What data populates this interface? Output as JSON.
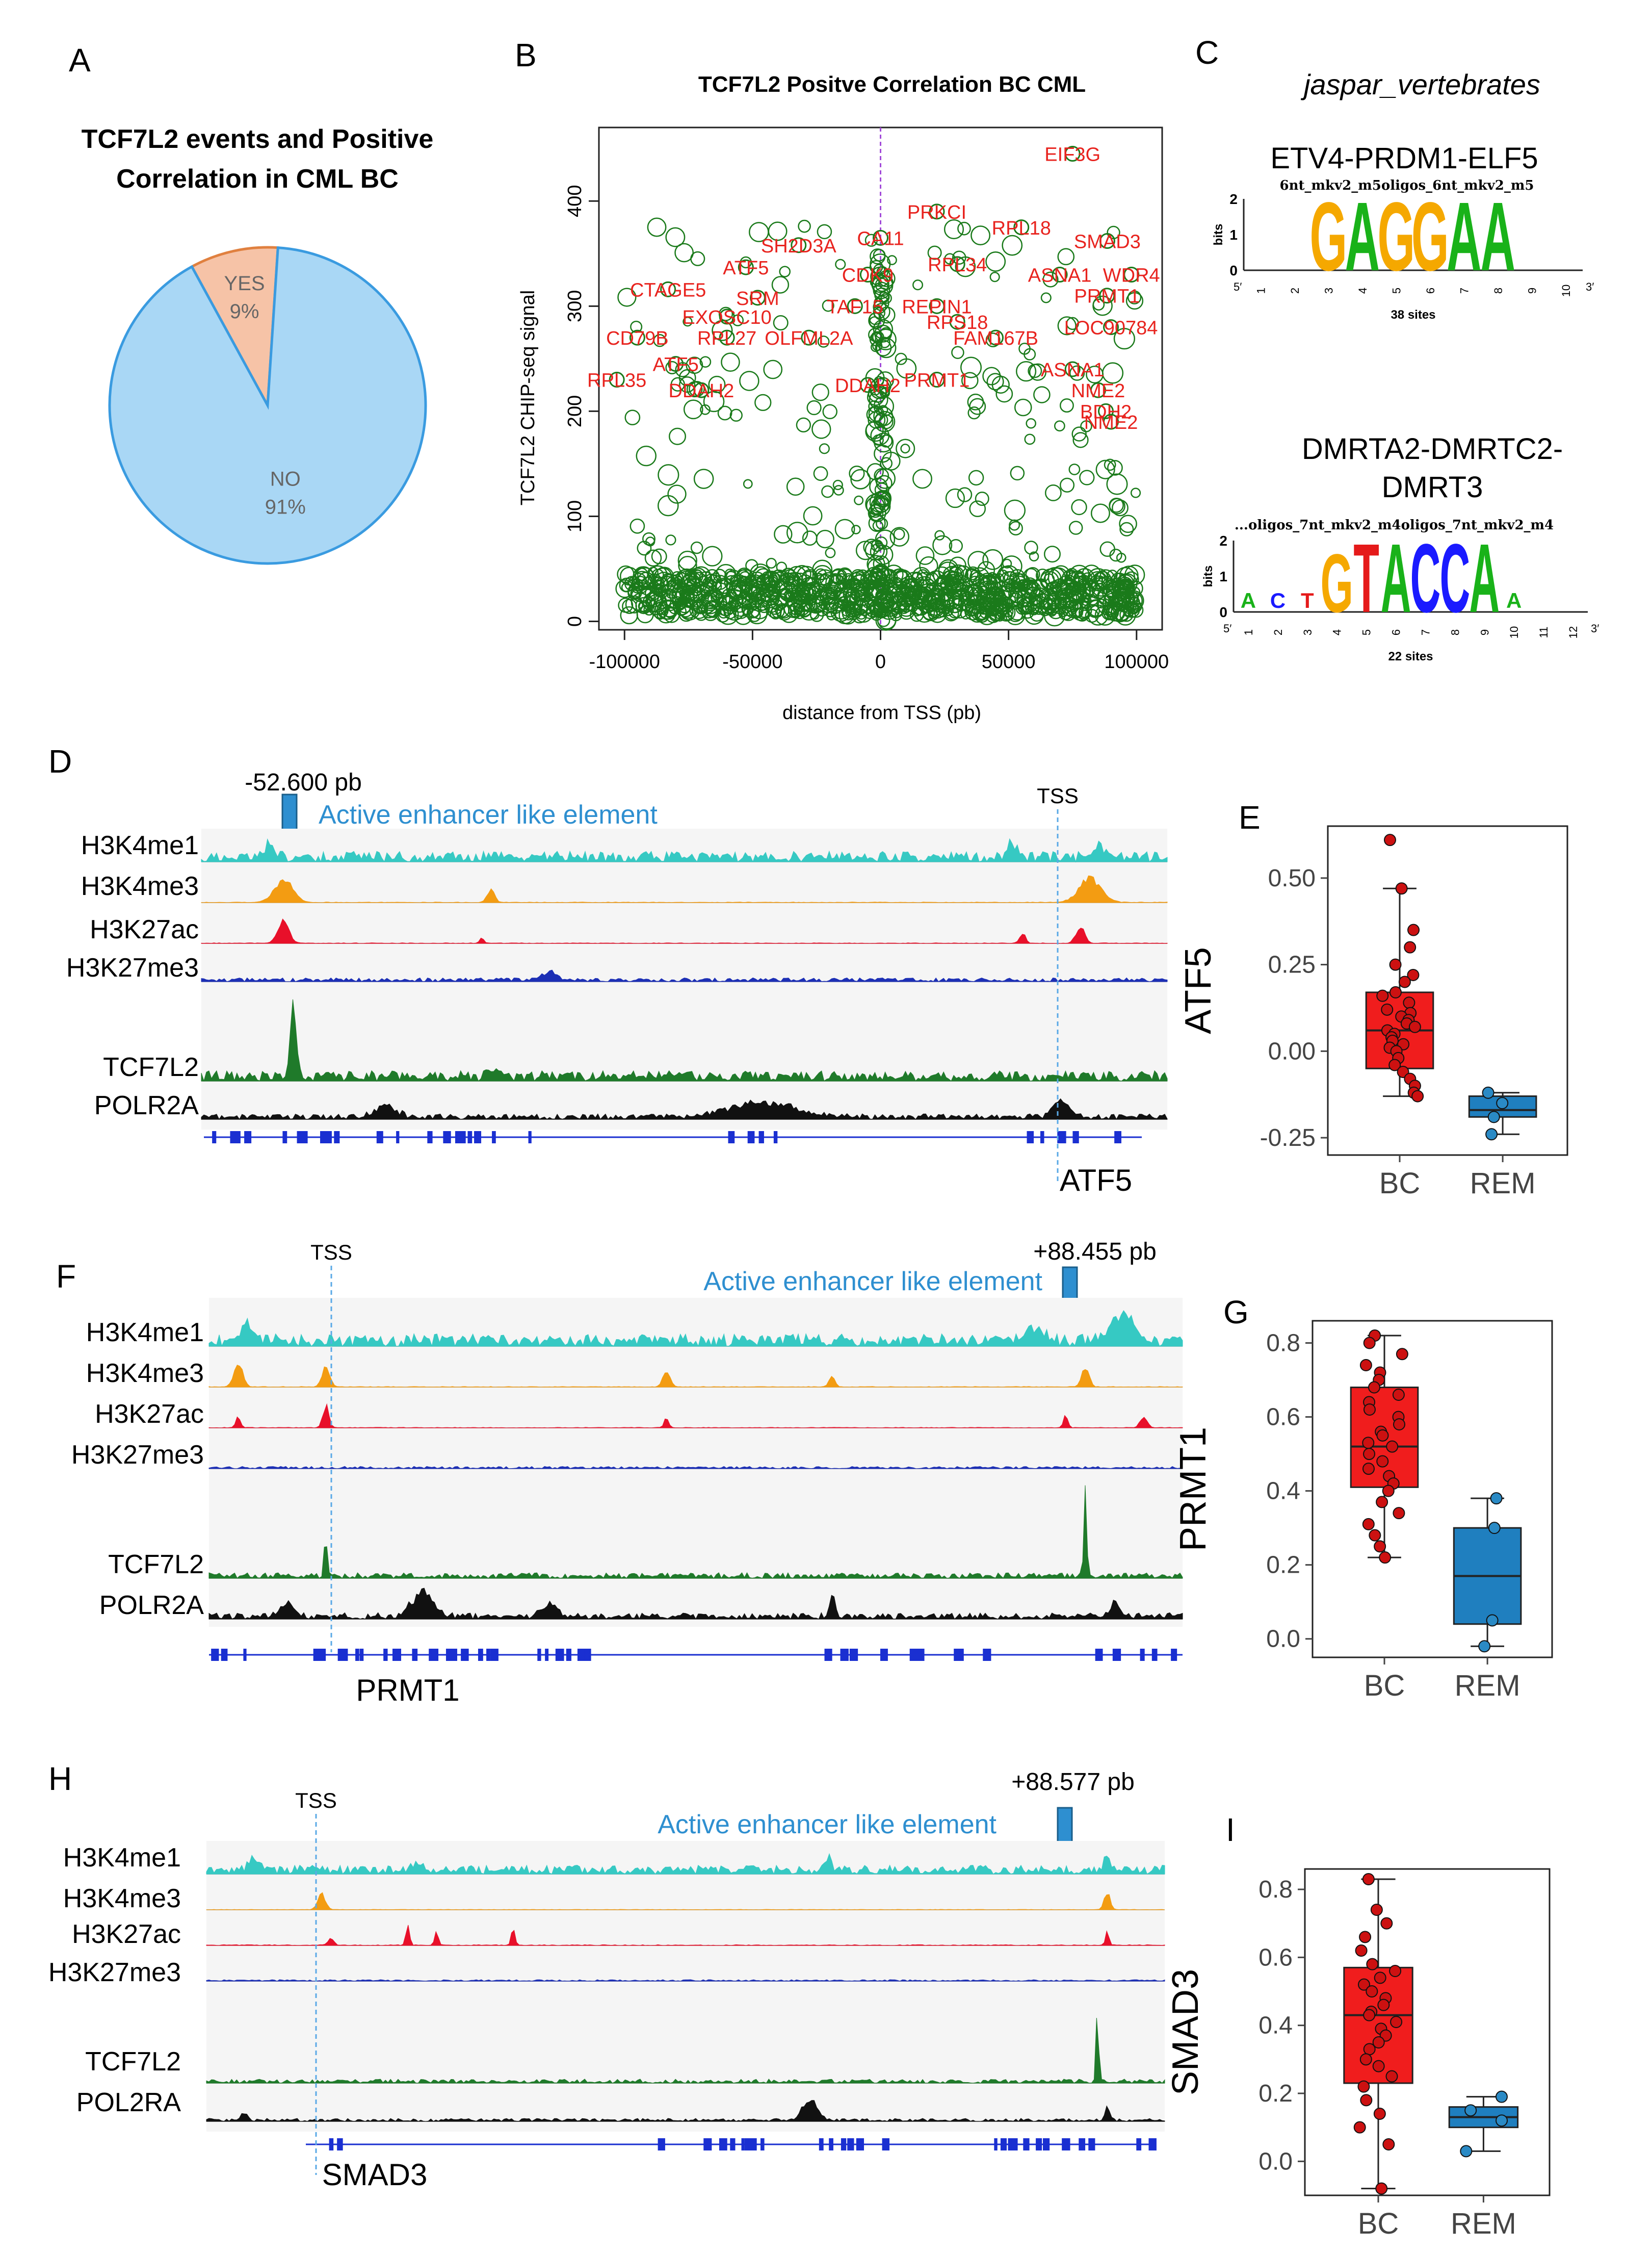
{
  "panels": {
    "A": {
      "letter": "A",
      "chart_data": {
        "type": "pie",
        "title": "TCF7L2 events and Positive Correlation in CML BC",
        "title_lines": [
          "TCF7L2 events and Positive",
          "Correlation in CML BC"
        ],
        "slices": [
          {
            "label": "YES",
            "pct_label": "9%",
            "value": 9,
            "color": "#f6c3a7"
          },
          {
            "label": "NO",
            "pct_label": "91%",
            "value": 91,
            "color": "#a9d7f5"
          }
        ]
      }
    },
    "B": {
      "letter": "B",
      "chart_data": {
        "type": "scatter",
        "title": "TCF7L2 Positve Correlation BC CML",
        "xlabel": "distance from TSS (pb)",
        "ylabel": "TCF7L2 CHIP-seq signal",
        "xlim": [
          -110000,
          110000
        ],
        "ylim": [
          -8,
          470
        ],
        "xticks": [
          -100000,
          -50000,
          0,
          50000,
          100000
        ],
        "xtick_labels": [
          "-100000",
          "-50000",
          "0",
          "50000",
          "100000"
        ],
        "yticks": [
          0,
          100,
          200,
          300,
          400
        ],
        "point_color": "#1a7a1a",
        "label_color": "#e8231e",
        "vline_x": 0,
        "vline_color": "#a24bd9",
        "labeled_points": [
          {
            "gene": "EIF3G",
            "x": 75000,
            "y": 445
          },
          {
            "gene": "PRKCI",
            "x": 22000,
            "y": 390
          },
          {
            "gene": "RPL18",
            "x": 55000,
            "y": 375
          },
          {
            "gene": "SMAD3",
            "x": 88577,
            "y": 362
          },
          {
            "gene": "CA11",
            "x": 0,
            "y": 365
          },
          {
            "gene": "ATF5",
            "x": -52600,
            "y": 337
          },
          {
            "gene": "SH2D3A",
            "x": -32000,
            "y": 358
          },
          {
            "gene": "CTAGE5",
            "x": -83000,
            "y": 316
          },
          {
            "gene": "ASNA1",
            "x": 70000,
            "y": 330
          },
          {
            "gene": "WDR4",
            "x": 98000,
            "y": 330
          },
          {
            "gene": "RPL34",
            "x": 30000,
            "y": 340
          },
          {
            "gene": "CDK9",
            "x": -5000,
            "y": 330
          },
          {
            "gene": "SRM",
            "x": -48000,
            "y": 308
          },
          {
            "gene": "TAF15",
            "x": -10000,
            "y": 300
          },
          {
            "gene": "REPIN1",
            "x": 22000,
            "y": 300
          },
          {
            "gene": "PRMT1",
            "x": 88455,
            "y": 310
          },
          {
            "gene": "EXOSC10",
            "x": -60000,
            "y": 290
          },
          {
            "gene": "RPS18",
            "x": 30000,
            "y": 285
          },
          {
            "gene": "CD79B",
            "x": -95000,
            "y": 270
          },
          {
            "gene": "RPL27",
            "x": -60000,
            "y": 270
          },
          {
            "gene": "OLFML2A",
            "x": -28000,
            "y": 270
          },
          {
            "gene": "FAM167B",
            "x": 45000,
            "y": 270
          },
          {
            "gene": "LOC90784",
            "x": 90000,
            "y": 280
          },
          {
            "gene": "ATF5",
            "x": -80000,
            "y": 245
          },
          {
            "gene": "RPL35",
            "x": -103000,
            "y": 230
          },
          {
            "gene": "DDAH2",
            "x": -70000,
            "y": 220
          },
          {
            "gene": "DDAH2",
            "x": -5000,
            "y": 225
          },
          {
            "gene": "PRMT1",
            "x": 22000,
            "y": 230
          },
          {
            "gene": "ASNA1",
            "x": 75000,
            "y": 240
          },
          {
            "gene": "NME2",
            "x": 85000,
            "y": 220
          },
          {
            "gene": "BDH2",
            "x": 88000,
            "y": 200
          },
          {
            "gene": "NME2",
            "x": 90000,
            "y": 190
          }
        ]
      }
    },
    "C": {
      "letter": "C",
      "header": "jaspar_vertebrates",
      "motifs": [
        {
          "title": "ETV4-PRDM1-ELF5",
          "subtitle": "6nt_mkv2_m5oligos_6nt_mkv2_m5",
          "sites": "38 sites",
          "ylabel": "bits",
          "yticks": [
            "0",
            "1",
            "2"
          ],
          "positions": [
            "1",
            "2",
            "3",
            "4",
            "5",
            "6",
            "7",
            "8",
            "9",
            "10"
          ],
          "core_letters": [
            "G",
            "A",
            "G",
            "G",
            "A",
            "A"
          ],
          "left_end": "5′",
          "right_end": "3′"
        },
        {
          "title_lines": [
            "DMRTA2-DMRTC2-",
            "DMRT3"
          ],
          "subtitle": "...oligos_7nt_mkv2_m4oligos_7nt_mkv2_m4",
          "sites": "22 sites",
          "ylabel": "bits",
          "yticks": [
            "0",
            "1",
            "2"
          ],
          "positions": [
            "1",
            "2",
            "3",
            "4",
            "5",
            "6",
            "7",
            "8",
            "9",
            "10",
            "11",
            "12"
          ],
          "core_letters": [
            "G",
            "T",
            "A",
            "C",
            "C",
            "A"
          ],
          "left_end": "5′",
          "right_end": "3′"
        }
      ],
      "letter_colors": {
        "A": "#19b219",
        "C": "#1a1aff",
        "G": "#f5a800",
        "T": "#e51a1a"
      }
    },
    "D": {
      "letter": "D",
      "distance_label": "-52.600 pb",
      "enhancer_label": "Active enhancer like element",
      "tss_label": "TSS",
      "gene_label": "ATF5",
      "tracks": [
        "H3K4me1",
        "H3K4me3",
        "H3K27ac",
        "H3K27me3",
        "TCF7L2",
        "POLR2A"
      ]
    },
    "E": {
      "letter": "E",
      "chart_data": {
        "type": "box",
        "ylabel": "ATF5",
        "categories": [
          "BC",
          "REM"
        ],
        "ylim": [
          -0.3,
          0.65
        ],
        "yticks": [
          -0.25,
          0.0,
          0.25,
          0.5
        ],
        "ytick_labels": [
          "-0.25",
          "0.00",
          "0.25",
          "0.50"
        ],
        "series": [
          {
            "name": "BC",
            "q1": -0.05,
            "median": 0.06,
            "q3": 0.17,
            "whisker_low": -0.13,
            "whisker_high": 0.47,
            "points": [
              0.61,
              0.47,
              0.35,
              0.3,
              0.25,
              0.22,
              0.2,
              0.17,
              0.16,
              0.14,
              0.12,
              0.11,
              0.1,
              0.09,
              0.08,
              0.07,
              0.06,
              0.05,
              0.04,
              0.03,
              0.02,
              0.01,
              0.0,
              -0.02,
              -0.04,
              -0.06,
              -0.08,
              -0.1,
              -0.12,
              -0.13
            ]
          },
          {
            "name": "REM",
            "q1": -0.19,
            "median": -0.17,
            "q3": -0.13,
            "whisker_low": -0.24,
            "whisker_high": -0.12,
            "points": [
              -0.12,
              -0.15,
              -0.19,
              -0.24
            ]
          }
        ]
      }
    },
    "F": {
      "letter": "F",
      "distance_label": "+88.455 pb",
      "enhancer_label": "Active enhancer like element",
      "tss_label": "TSS",
      "gene_label": "PRMT1",
      "tracks": [
        "H3K4me1",
        "H3K4me3",
        "H3K27ac",
        "H3K27me3",
        "TCF7L2",
        "POLR2A"
      ]
    },
    "G": {
      "letter": "G",
      "chart_data": {
        "type": "box",
        "ylabel": "PRMT1",
        "categories": [
          "BC",
          "REM"
        ],
        "ylim": [
          -0.05,
          0.86
        ],
        "yticks": [
          0.0,
          0.2,
          0.4,
          0.6,
          0.8
        ],
        "ytick_labels": [
          "0.0",
          "0.2",
          "0.4",
          "0.6",
          "0.8"
        ],
        "series": [
          {
            "name": "BC",
            "q1": 0.41,
            "median": 0.52,
            "q3": 0.68,
            "whisker_low": 0.22,
            "whisker_high": 0.82,
            "points": [
              0.82,
              0.8,
              0.77,
              0.74,
              0.72,
              0.7,
              0.68,
              0.66,
              0.64,
              0.62,
              0.6,
              0.58,
              0.56,
              0.55,
              0.53,
              0.52,
              0.5,
              0.48,
              0.46,
              0.44,
              0.42,
              0.4,
              0.37,
              0.34,
              0.31,
              0.28,
              0.25,
              0.22
            ]
          },
          {
            "name": "REM",
            "q1": 0.04,
            "median": 0.17,
            "q3": 0.3,
            "whisker_low": -0.02,
            "whisker_high": 0.38,
            "points": [
              0.38,
              0.3,
              0.05,
              -0.02
            ]
          }
        ]
      }
    },
    "H": {
      "letter": "H",
      "distance_label": "+88.577 pb",
      "enhancer_label": "Active enhancer like element",
      "tss_label": "TSS",
      "gene_label": "SMAD3",
      "tracks": [
        "H3K4me1",
        "H3K4me3",
        "H3K27ac",
        "H3K27me3",
        "TCF7L2",
        "POL2RA"
      ]
    },
    "I": {
      "letter": "I",
      "chart_data": {
        "type": "box",
        "ylabel": "SMAD3",
        "categories": [
          "BC",
          "REM"
        ],
        "ylim": [
          -0.1,
          0.86
        ],
        "yticks": [
          0.0,
          0.2,
          0.4,
          0.6,
          0.8
        ],
        "ytick_labels": [
          "0.0",
          "0.2",
          "0.4",
          "0.6",
          "0.8"
        ],
        "series": [
          {
            "name": "BC",
            "q1": 0.23,
            "median": 0.43,
            "q3": 0.57,
            "whisker_low": -0.08,
            "whisker_high": 0.83,
            "points": [
              0.83,
              0.74,
              0.7,
              0.66,
              0.62,
              0.58,
              0.56,
              0.54,
              0.52,
              0.5,
              0.48,
              0.46,
              0.44,
              0.43,
              0.41,
              0.39,
              0.37,
              0.35,
              0.33,
              0.3,
              0.28,
              0.25,
              0.22,
              0.18,
              0.14,
              0.1,
              0.05,
              -0.08
            ]
          },
          {
            "name": "REM",
            "q1": 0.1,
            "median": 0.13,
            "q3": 0.16,
            "whisker_low": 0.03,
            "whisker_high": 0.19,
            "points": [
              0.19,
              0.15,
              0.12,
              0.03
            ]
          }
        ]
      }
    }
  },
  "colors": {
    "h3k4me1": "#36c9c3",
    "h3k4me3": "#f39c12",
    "h3k27ac": "#e8102a",
    "h3k27me3": "#1c2fb5",
    "tcf7l2": "#1f7a2a",
    "polr2a": "#111111",
    "gene": "#1a2fd1",
    "enhancer": "#2e8fd0",
    "tss_line": "#5aa9e6",
    "bc_box": "#f01d1d",
    "rem_box": "#1f7fbf",
    "bc_point": "#cc1111",
    "rem_point": "#2a8ac5"
  }
}
